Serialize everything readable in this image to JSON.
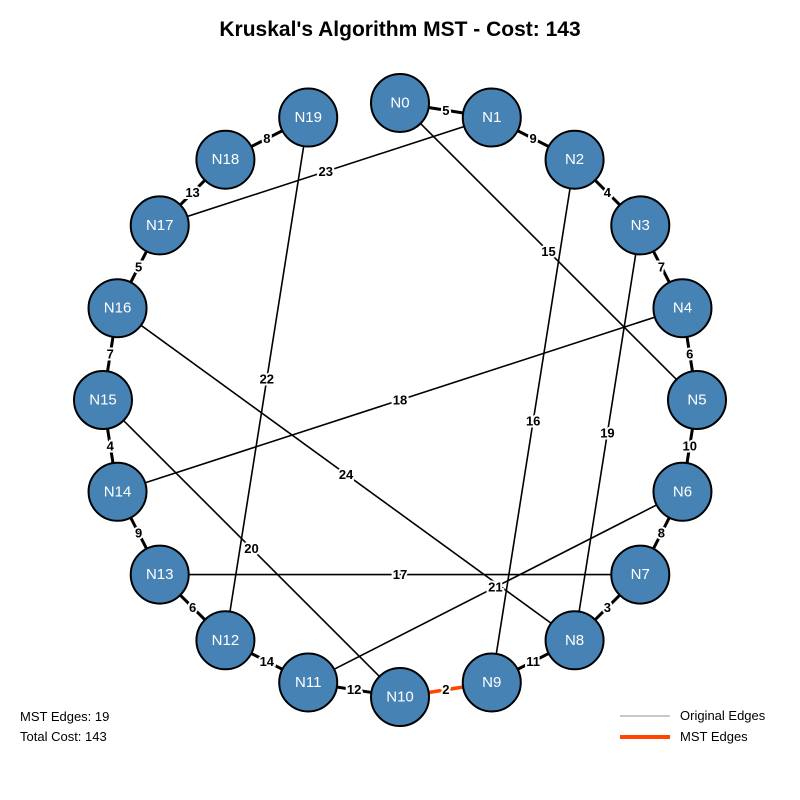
{
  "title": "Kruskal's Algorithm MST - Cost: 143",
  "stats": {
    "edges_label": "MST Edges: 19",
    "cost_label": "Total Cost: 143"
  },
  "legend": {
    "original_label": "Original Edges",
    "original_color": "#c8c8c8",
    "mst_label": "MST Edges",
    "mst_color": "#ff4500"
  },
  "colors": {
    "node_fill": "#4682b4",
    "node_stroke": "#000000",
    "edge": "#000000",
    "highlight_edge": "#ff4500"
  },
  "nodes": [
    "N0",
    "N1",
    "N2",
    "N3",
    "N4",
    "N5",
    "N6",
    "N7",
    "N8",
    "N9",
    "N10",
    "N11",
    "N12",
    "N13",
    "N14",
    "N15",
    "N16",
    "N17",
    "N18",
    "N19"
  ],
  "edges": [
    {
      "from": "N0",
      "to": "N1",
      "weight": "5"
    },
    {
      "from": "N1",
      "to": "N2",
      "weight": "9"
    },
    {
      "from": "N2",
      "to": "N3",
      "weight": "4"
    },
    {
      "from": "N3",
      "to": "N4",
      "weight": "7"
    },
    {
      "from": "N4",
      "to": "N5",
      "weight": "6"
    },
    {
      "from": "N5",
      "to": "N6",
      "weight": "10"
    },
    {
      "from": "N6",
      "to": "N7",
      "weight": "8"
    },
    {
      "from": "N7",
      "to": "N8",
      "weight": "3"
    },
    {
      "from": "N8",
      "to": "N9",
      "weight": "11"
    },
    {
      "from": "N9",
      "to": "N10",
      "weight": "2",
      "highlight": true
    },
    {
      "from": "N10",
      "to": "N11",
      "weight": "12"
    },
    {
      "from": "N11",
      "to": "N12",
      "weight": "14"
    },
    {
      "from": "N12",
      "to": "N13",
      "weight": "6"
    },
    {
      "from": "N13",
      "to": "N14",
      "weight": "9"
    },
    {
      "from": "N14",
      "to": "N15",
      "weight": "4"
    },
    {
      "from": "N15",
      "to": "N16",
      "weight": "7"
    },
    {
      "from": "N16",
      "to": "N17",
      "weight": "5"
    },
    {
      "from": "N17",
      "to": "N18",
      "weight": "13"
    },
    {
      "from": "N18",
      "to": "N19",
      "weight": "8"
    },
    {
      "from": "N17",
      "to": "N1",
      "weight": "23"
    },
    {
      "from": "N0",
      "to": "N5",
      "weight": "15"
    },
    {
      "from": "N19",
      "to": "N12",
      "weight": "22"
    },
    {
      "from": "N2",
      "to": "N9",
      "weight": "16"
    },
    {
      "from": "N3",
      "to": "N8",
      "weight": "19"
    },
    {
      "from": "N4",
      "to": "N14",
      "weight": "18"
    },
    {
      "from": "N16",
      "to": "N8",
      "weight": "24"
    },
    {
      "from": "N15",
      "to": "N10",
      "weight": "20"
    },
    {
      "from": "N13",
      "to": "N7",
      "weight": "17"
    },
    {
      "from": "N6",
      "to": "N11",
      "weight": "21"
    }
  ]
}
